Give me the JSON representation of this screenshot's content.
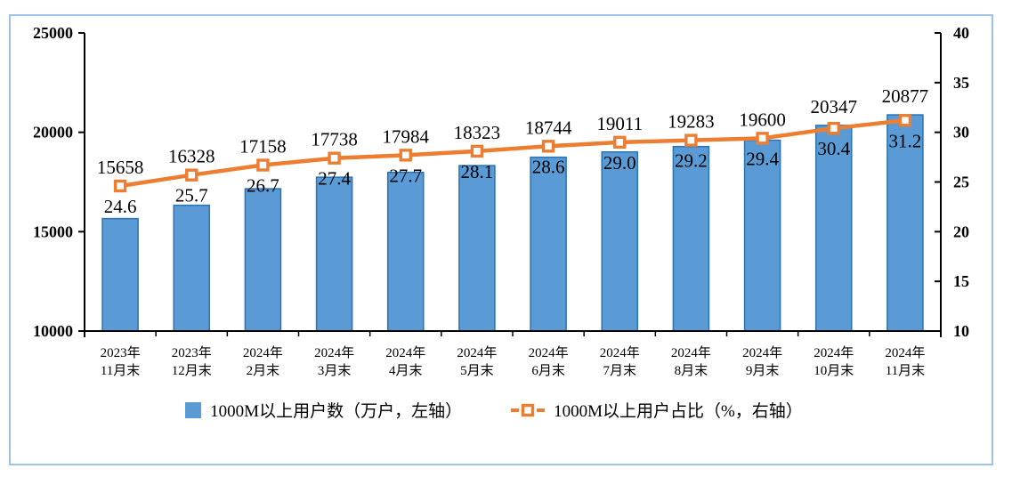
{
  "frame": {
    "border_color": "#9DC3E6",
    "background": "#FFFFFF"
  },
  "chart_data": {
    "type": "bar+line-combo",
    "grid": false,
    "legend_position": "bottom",
    "categories": [
      {
        "l1": "2023年",
        "l2": "11月末"
      },
      {
        "l1": "2023年",
        "l2": "12月末"
      },
      {
        "l1": "2024年",
        "l2": "2月末"
      },
      {
        "l1": "2024年",
        "l2": "3月末"
      },
      {
        "l1": "2024年",
        "l2": "4月末"
      },
      {
        "l1": "2024年",
        "l2": "5月末"
      },
      {
        "l1": "2024年",
        "l2": "6月末"
      },
      {
        "l1": "2024年",
        "l2": "7月末"
      },
      {
        "l1": "2024年",
        "l2": "8月末"
      },
      {
        "l1": "2024年",
        "l2": "9月末"
      },
      {
        "l1": "2024年",
        "l2": "10月末"
      },
      {
        "l1": "2024年",
        "l2": "11月末"
      }
    ],
    "series": [
      {
        "name": "1000M以上用户数（万户，左轴）",
        "type": "bar",
        "axis": "left",
        "color": "#5B9BD5",
        "border_color": "#2E75B6",
        "values": [
          15658,
          16328,
          17158,
          17738,
          17984,
          18323,
          18744,
          19011,
          19283,
          19600,
          20347,
          20877
        ]
      },
      {
        "name": "1000M以上用户占比（%，右轴）",
        "type": "line",
        "axis": "right",
        "color": "#ED7D31",
        "marker": "hollow-square",
        "values": [
          24.6,
          25.7,
          26.7,
          27.4,
          27.7,
          28.1,
          28.6,
          29.0,
          29.2,
          29.4,
          30.4,
          31.2
        ]
      }
    ],
    "left_axis": {
      "min": 10000,
      "max": 25000,
      "ticks": [
        25000,
        20000,
        15000,
        10000
      ]
    },
    "right_axis": {
      "min": 10,
      "max": 40,
      "ticks": [
        40,
        35,
        30,
        25,
        20,
        15,
        10
      ]
    },
    "axis_color": "#000000",
    "label_color": "#000000"
  }
}
